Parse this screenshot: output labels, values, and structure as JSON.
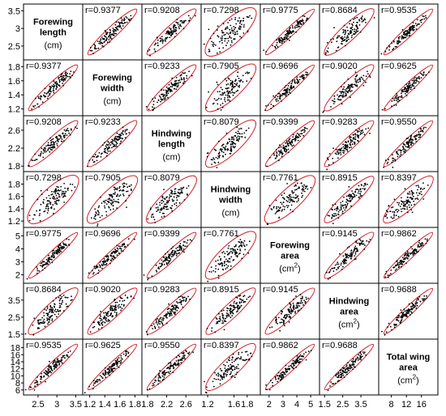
{
  "chart_data": {
    "type": "scatter",
    "variables": [
      {
        "name_lines": [
          "Forewing",
          "length"
        ],
        "unit": "(cm)",
        "unit_sup": "",
        "unit_tail": "",
        "range": [
          2.2,
          3.6
        ],
        "ticks": [
          "2.5",
          "3",
          "3.5"
        ],
        "tick_values": [
          2.5,
          3.0,
          3.5
        ]
      },
      {
        "name_lines": [
          "Forewing",
          "width"
        ],
        "unit": "(cm)",
        "unit_sup": "",
        "unit_tail": "",
        "range": [
          1.15,
          1.85
        ],
        "ticks": [
          "1.2",
          "1.4",
          "1.6",
          "1.8"
        ],
        "tick_values": [
          1.2,
          1.4,
          1.6,
          1.8
        ]
      },
      {
        "name_lines": [
          "Hindwing",
          "length"
        ],
        "unit": "(cm)",
        "unit_sup": "",
        "unit_tail": "",
        "range": [
          1.75,
          2.85
        ],
        "ticks": [
          "1.8",
          "2.2",
          "2.6"
        ],
        "tick_values": [
          1.8,
          2.2,
          2.6
        ]
      },
      {
        "name_lines": [
          "Hindwing",
          "width"
        ],
        "unit": "(cm)",
        "unit_sup": "",
        "unit_tail": "",
        "range": [
          1.15,
          1.95
        ],
        "ticks": [
          "1.2",
          "1.4",
          "1.6",
          "1.8"
        ],
        "tick_values": [
          1.2,
          1.4,
          1.6,
          1.8
        ]
      },
      {
        "name_lines": [
          "Forewing",
          "area"
        ],
        "unit": "(cm",
        "unit_sup": "2",
        "unit_tail": ")",
        "range": [
          1.6,
          5.4
        ],
        "ticks": [
          "2",
          "3",
          "4",
          "5"
        ],
        "tick_values": [
          2,
          3,
          4,
          5
        ]
      },
      {
        "name_lines": [
          "Hindwing",
          "area"
        ],
        "unit": "(cm",
        "unit_sup": "2",
        "unit_tail": ")",
        "range": [
          1.4,
          4.3
        ],
        "ticks": [
          "1.5",
          "2.5",
          "3.5"
        ],
        "tick_values": [
          1.5,
          2.5,
          3.5
        ]
      },
      {
        "name_lines": [
          "Total wing",
          "area"
        ],
        "unit": "(cm",
        "unit_sup": "2",
        "unit_tail": ")",
        "range": [
          5.5,
          19.5
        ],
        "ticks": [
          "6",
          "8",
          "10",
          "12",
          "14",
          "16",
          "18"
        ],
        "tick_values": [
          6,
          8,
          10,
          12,
          14,
          16,
          18
        ]
      }
    ],
    "x_tick_labels": [
      [
        "2.5",
        "3",
        "3.5"
      ],
      [
        "1.2",
        "1.4",
        "1.6",
        "1.8"
      ],
      [
        "1.8",
        "2.2",
        "2.6"
      ],
      [
        "1.2",
        "1.6",
        "1.8"
      ],
      [
        "2",
        "3",
        "4",
        "5"
      ],
      [
        "1.5",
        "2.5",
        "3.5"
      ],
      [
        "8",
        "12",
        "16"
      ]
    ],
    "x_tick_values": [
      [
        2.5,
        3.0,
        3.5
      ],
      [
        1.2,
        1.4,
        1.6,
        1.8
      ],
      [
        1.8,
        2.2,
        2.6
      ],
      [
        1.2,
        1.6,
        1.8
      ],
      [
        2,
        3,
        4,
        5
      ],
      [
        1.5,
        2.5,
        3.5
      ],
      [
        8,
        12,
        16
      ]
    ],
    "correlations": [
      [
        null,
        "r=0.9377",
        "r=0.9208",
        "r=0.7298",
        "r=0.9775",
        "r=0.8684",
        "r=0.9535"
      ],
      [
        "r=0.9377",
        null,
        "r=0.9233",
        "r=0.7905",
        "r=0.9696",
        "r=0.9020",
        "r=0.9625"
      ],
      [
        "r=0.9208",
        "r=0.9233",
        null,
        "r=0.8079",
        "r=0.9399",
        "r=0.9283",
        "r=0.9550"
      ],
      [
        "r=0.7298",
        "r=0.7905",
        "r=0.8079",
        null,
        "r=0.7761",
        "r=0.8915",
        "r=0.8397"
      ],
      [
        "r=0.9775",
        "r=0.9696",
        "r=0.9399",
        "r=0.7761",
        null,
        "r=0.9145",
        "r=0.9862"
      ],
      [
        "r=0.8684",
        "r=0.9020",
        "r=0.9283",
        "r=0.8915",
        "r=0.9145",
        null,
        "r=0.9688"
      ],
      [
        "r=0.9535",
        "r=0.9625",
        "r=0.9550",
        "r=0.8397",
        "r=0.9862",
        "r=0.9688",
        null
      ]
    ],
    "point_color": "#000000",
    "ellipse_color": "#d0202a",
    "grid": false
  }
}
